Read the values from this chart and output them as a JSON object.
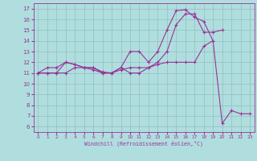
{
  "xlabel": "Windchill (Refroidissement éolien,°C)",
  "background_color": "#b0dede",
  "grid_color": "#90bfbf",
  "line_color": "#993399",
  "hours": [
    0,
    1,
    2,
    3,
    4,
    5,
    6,
    7,
    8,
    9,
    10,
    11,
    12,
    13,
    14,
    15,
    16,
    17,
    18,
    19,
    20,
    21,
    22,
    23
  ],
  "line1": [
    11.0,
    11.5,
    11.5,
    12.0,
    11.8,
    11.5,
    11.5,
    11.1,
    11.0,
    11.5,
    13.0,
    13.0,
    12.0,
    13.0,
    15.0,
    16.8,
    16.9,
    16.2,
    15.8,
    14.0,
    null,
    null,
    null,
    null
  ],
  "line2": [
    11.0,
    11.0,
    11.0,
    12.0,
    11.8,
    11.5,
    11.3,
    11.0,
    11.0,
    11.3,
    11.5,
    11.5,
    11.5,
    12.0,
    13.0,
    15.5,
    16.5,
    16.5,
    14.8,
    14.8,
    15.0,
    null,
    null,
    null
  ],
  "line3": [
    11.0,
    11.0,
    11.0,
    11.0,
    11.5,
    11.5,
    11.5,
    11.0,
    11.0,
    11.5,
    11.0,
    11.0,
    11.5,
    11.8,
    12.0,
    12.0,
    12.0,
    12.0,
    13.5,
    14.0,
    6.3,
    7.5,
    7.2,
    7.2
  ],
  "ylim": [
    5.5,
    17.5
  ],
  "xlim": [
    -0.5,
    23.5
  ],
  "yticks": [
    6,
    7,
    8,
    9,
    10,
    11,
    12,
    13,
    14,
    15,
    16,
    17
  ],
  "xticks": [
    0,
    1,
    2,
    3,
    4,
    5,
    6,
    7,
    8,
    9,
    10,
    11,
    12,
    13,
    14,
    15,
    16,
    17,
    18,
    19,
    20,
    21,
    22,
    23
  ]
}
